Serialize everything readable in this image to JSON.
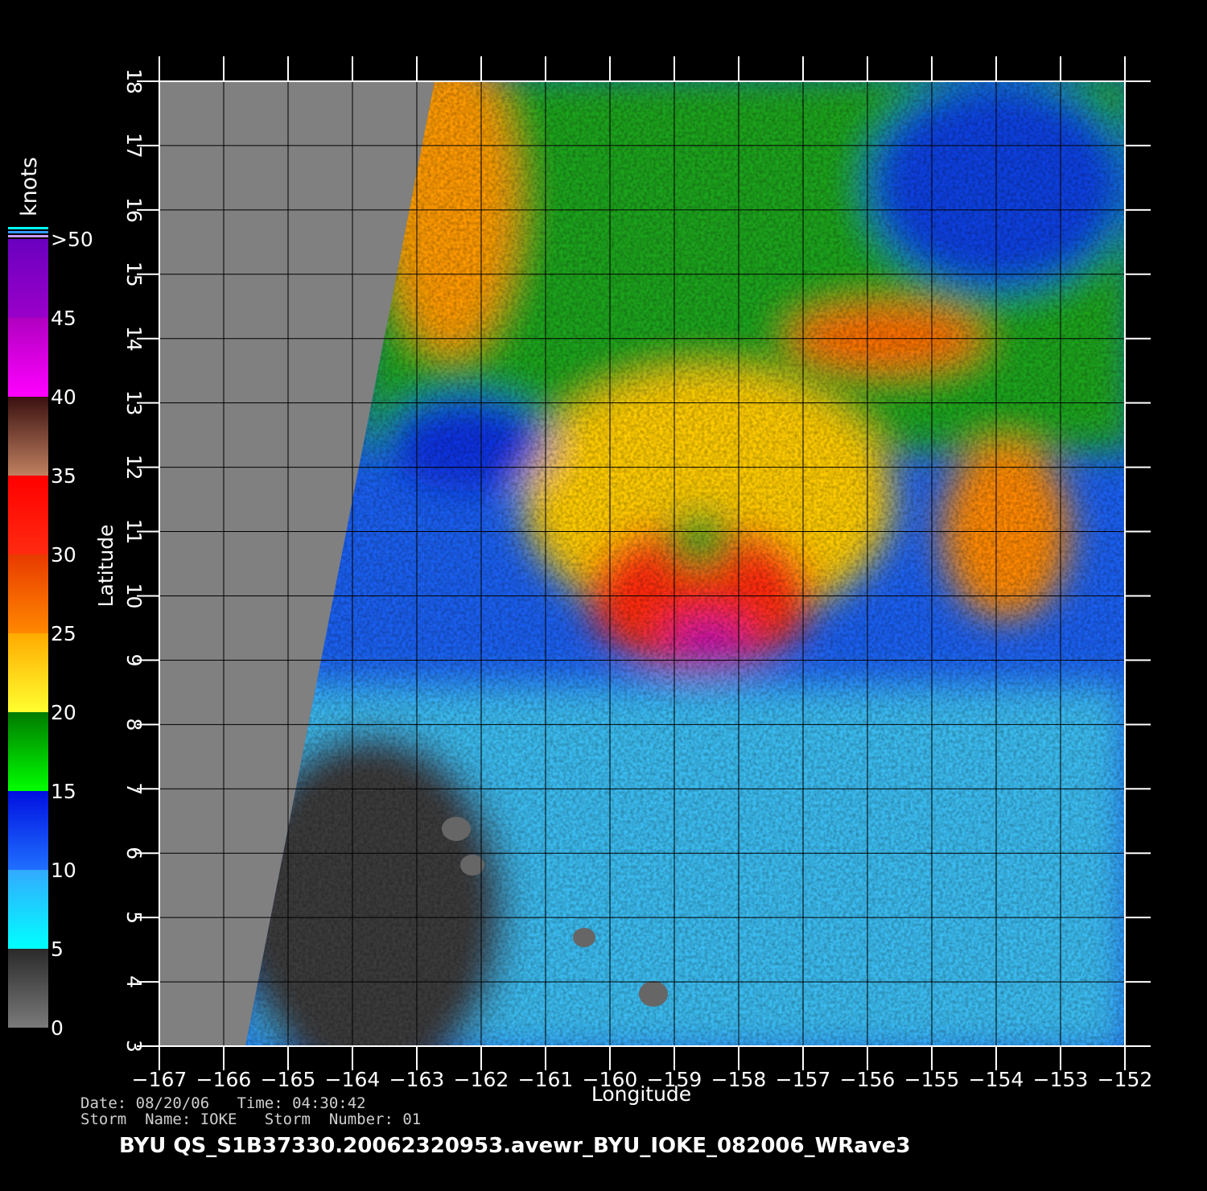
{
  "map": {
    "title": "BYU  QS_S1B37330.20062320953.avewr_BYU_IOKE_082006_WRave3",
    "info": [
      "Date: 08/20/06   Time: 04:30:42",
      "Storm  Name: IOKE   Storm  Number: 01"
    ],
    "xaxis": {
      "label": "Longitude",
      "xlim": [
        -167,
        -152
      ],
      "xticks": [
        {
          "value": -167,
          "label": "−167"
        },
        {
          "value": -166,
          "label": "−166"
        },
        {
          "value": -165,
          "label": "−165"
        },
        {
          "value": -164,
          "label": "−164"
        },
        {
          "value": -163,
          "label": "−163"
        },
        {
          "value": -162,
          "label": "−162"
        },
        {
          "value": -161,
          "label": "−161"
        },
        {
          "value": -160,
          "label": "−160"
        },
        {
          "value": -159,
          "label": "−159"
        },
        {
          "value": -158,
          "label": "−158"
        },
        {
          "value": -157,
          "label": "−157"
        },
        {
          "value": -156,
          "label": "−156"
        },
        {
          "value": -155,
          "label": "−155"
        },
        {
          "value": -154,
          "label": "−154"
        },
        {
          "value": -153,
          "label": "−153"
        },
        {
          "value": -152,
          "label": "−152"
        }
      ]
    },
    "yaxis": {
      "label": "Latitude",
      "ylim": [
        3,
        18
      ],
      "yticks": [
        3,
        4,
        5,
        6,
        7,
        8,
        9,
        10,
        11,
        12,
        13,
        14,
        15,
        16,
        17,
        18
      ]
    },
    "colorbar": {
      "label": "knots",
      "lim": [
        0,
        50
      ],
      "ticks": [
        0,
        5,
        10,
        15,
        20,
        25,
        30,
        35,
        40,
        45,
        {
          "value": 50,
          "label": ">50"
        }
      ],
      "segments": [
        [
          "#7a7a7a",
          "#2a2a2a"
        ],
        [
          "#00ffff",
          "#33aaff"
        ],
        [
          "#1f6fff",
          "#0010e0"
        ],
        [
          "#00ff00",
          "#007a00"
        ],
        [
          "#ffff30",
          "#ffaa00"
        ],
        [
          "#ff8800",
          "#e83a00"
        ],
        [
          "#ff2a10",
          "#ff0000"
        ],
        [
          "#c08060",
          "#3a1010"
        ],
        [
          "#ff00ff",
          "#b000c0"
        ],
        [
          "#9a00c8",
          "#6a00c0"
        ]
      ]
    }
  }
}
